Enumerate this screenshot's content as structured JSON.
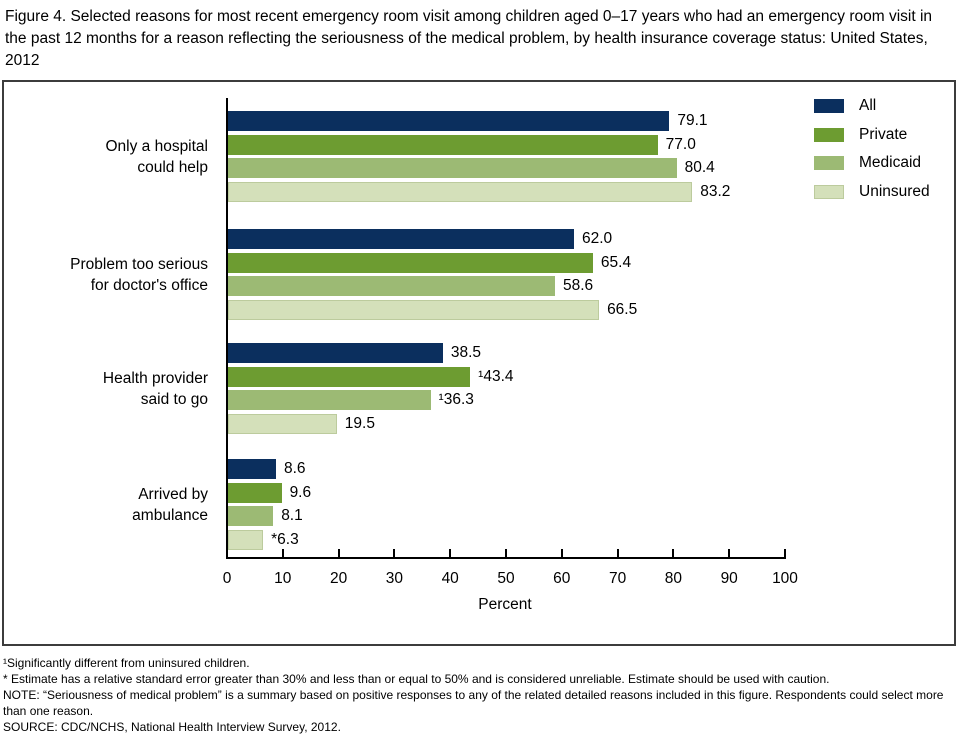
{
  "figure": {
    "title": "Figure 4. Selected reasons for most recent emergency room visit among children aged 0–17 years who had an emergency room visit in the past 12 months for a reason reflecting the seriousness of the medical problem, by health insurance coverage status: United States, 2012"
  },
  "chart_data": {
    "type": "bar",
    "orientation": "horizontal",
    "title": "",
    "xlabel": "Percent",
    "ylabel": "",
    "xlim": [
      0,
      100
    ],
    "xticks": [
      0,
      10,
      20,
      30,
      40,
      50,
      60,
      70,
      80,
      90,
      100
    ],
    "grid": false,
    "legend_position": "top-right",
    "categories": [
      "Only a hospital could help",
      "Problem too serious for doctor's office",
      "Health provider said to go",
      "Arrived by ambulance"
    ],
    "category_lines": [
      [
        "Only a hospital",
        "could help"
      ],
      [
        "Problem too serious",
        "for doctor's office"
      ],
      [
        "Health provider",
        "said to go"
      ],
      [
        "Arrived by",
        "ambulance"
      ]
    ],
    "series": [
      {
        "name": "All",
        "color": "#0b2f5e",
        "values": [
          79.1,
          62.0,
          38.5,
          8.6
        ],
        "value_labels": [
          "79.1",
          "62.0",
          "38.5",
          "8.6"
        ]
      },
      {
        "name": "Private",
        "color": "#6d9c31",
        "values": [
          77.0,
          65.4,
          43.4,
          9.6
        ],
        "value_labels": [
          "77.0",
          "65.4",
          "¹43.4",
          "9.6"
        ]
      },
      {
        "name": "Medicaid",
        "color": "#9cba74",
        "values": [
          80.4,
          58.6,
          36.3,
          8.1
        ],
        "value_labels": [
          "80.4",
          "58.6",
          "¹36.3",
          "8.1"
        ]
      },
      {
        "name": "Uninsured",
        "color": "#d4e0ba",
        "border_color": "#bccb9d",
        "values": [
          83.2,
          66.5,
          19.5,
          6.3
        ],
        "value_labels": [
          "83.2",
          "66.5",
          "19.5",
          "*6.3"
        ]
      }
    ]
  },
  "footnotes": {
    "line1": "¹Significantly different from uninsured children.",
    "line2": "* Estimate has a relative standard error greater than 30% and less than or equal to 50% and is considered unreliable. Estimate should be used with caution.",
    "line3": "NOTE: “Seriousness of medical problem” is a summary based on positive responses to any of the related detailed reasons included in this figure. Respondents could select more than one reason.",
    "line4": "SOURCE: CDC/NCHS, National Health Interview Survey, 2012."
  }
}
